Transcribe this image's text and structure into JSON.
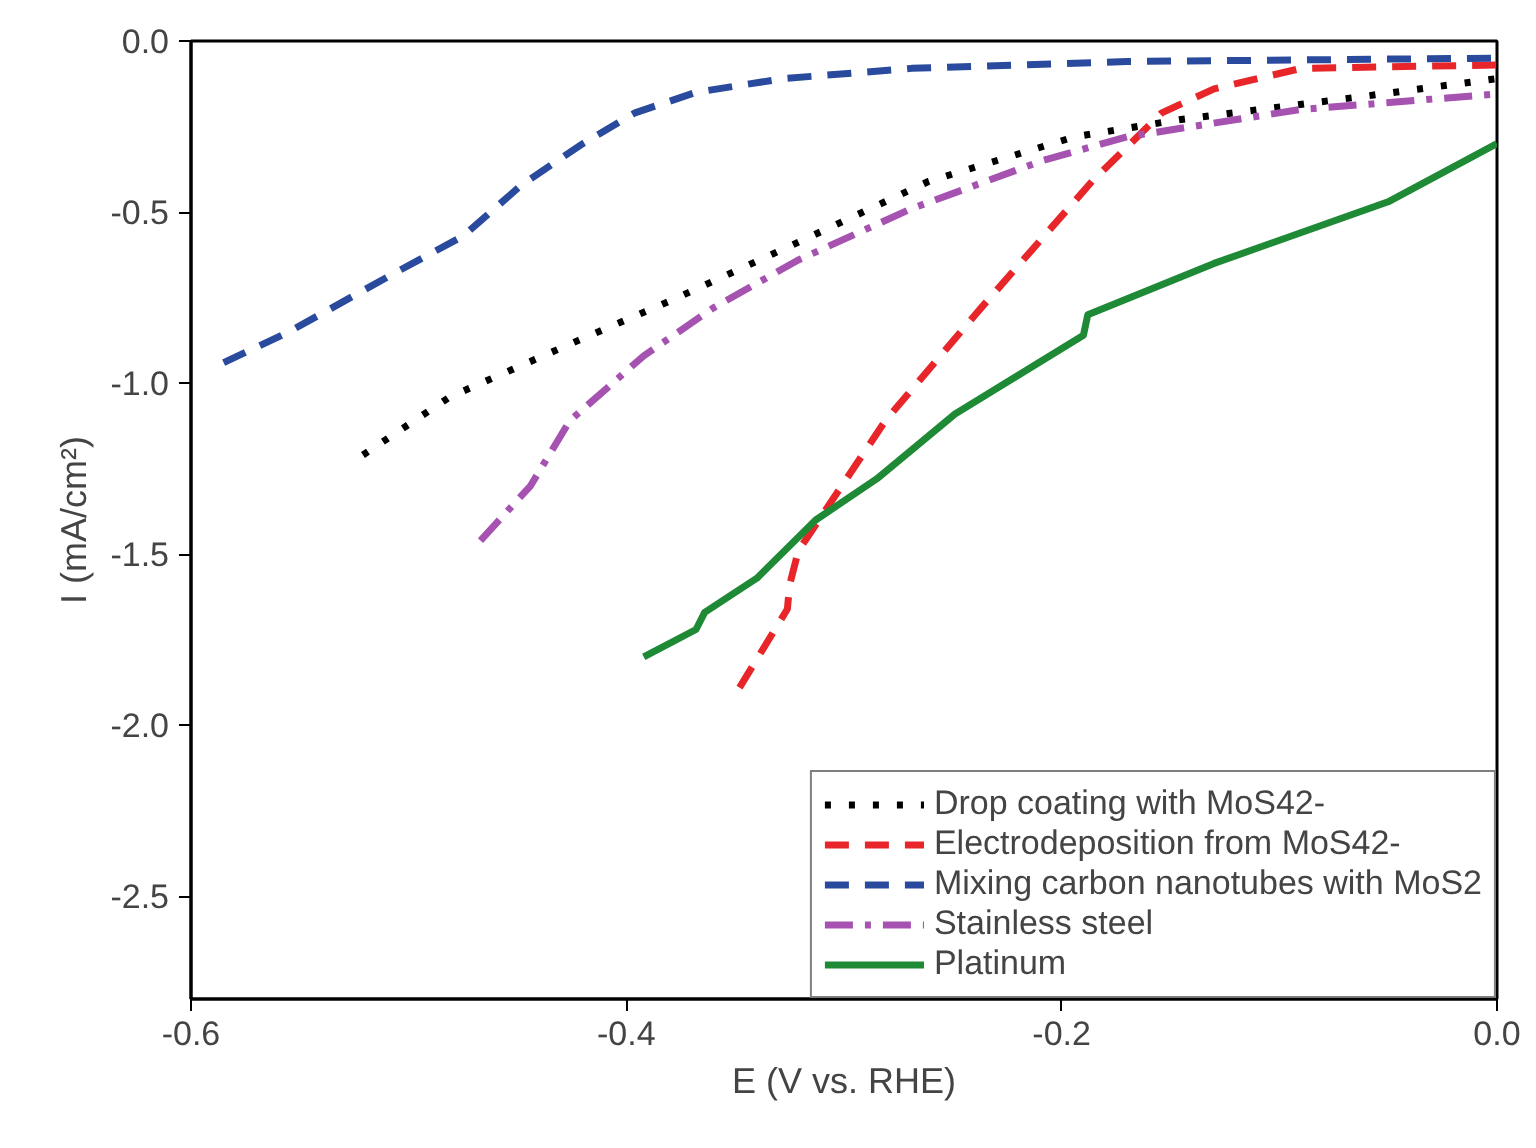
{
  "chart_data": {
    "type": "line",
    "xlabel": "E (V vs. RHE)",
    "ylabel": "I (mA/cm²)",
    "xlim": [
      -0.6,
      0.0
    ],
    "ylim": [
      -2.8,
      0.0
    ],
    "xticks": [
      -0.6,
      -0.4,
      -0.2,
      {
        "value": 0,
        "label": "0.0"
      }
    ],
    "yticks": [
      {
        "value": 0,
        "label": "0.0"
      },
      -0.5,
      {
        "value": -1,
        "label": "-1.0"
      },
      -1.5,
      {
        "value": -2,
        "label": "-2.0"
      },
      -2.5
    ],
    "grid": false,
    "legend": "bottom right",
    "series": [
      {
        "name": "Drop coating with MoS42-",
        "color": "#000000",
        "line_style": "dotted",
        "x": [
          -0.521,
          -0.481,
          -0.422,
          -0.38,
          -0.325,
          -0.261,
          -0.194,
          -0.146,
          -0.059,
          0.0
        ],
        "values": [
          -1.21,
          -1.04,
          -0.875,
          -0.76,
          -0.6,
          -0.41,
          -0.28,
          -0.23,
          -0.16,
          -0.11
        ]
      },
      {
        "name": "Electrodeposition from MoS42-",
        "color": "#e8262a",
        "line_style": "dashed",
        "x": [
          -0.348,
          -0.326,
          -0.325,
          -0.321,
          -0.281,
          -0.237,
          -0.186,
          -0.154,
          -0.13,
          -0.09,
          0.0
        ],
        "values": [
          -1.89,
          -1.66,
          -1.59,
          -1.49,
          -1.11,
          -0.78,
          -0.41,
          -0.21,
          -0.14,
          -0.08,
          -0.07
        ]
      },
      {
        "name": "Mixing carbon nanotubes with MoS2",
        "color": "#2a4a9e",
        "line_style": "dashed",
        "x": [
          -0.585,
          -0.555,
          -0.507,
          -0.475,
          -0.448,
          -0.42,
          -0.396,
          -0.368,
          -0.328,
          -0.269,
          -0.17,
          0.0
        ],
        "values": [
          -0.94,
          -0.85,
          -0.68,
          -0.57,
          -0.42,
          -0.3,
          -0.21,
          -0.15,
          -0.11,
          -0.08,
          -0.06,
          -0.05
        ]
      },
      {
        "name": "Stainless steel",
        "color": "#a552b0",
        "line_style": "dashdot",
        "x": [
          -0.467,
          -0.444,
          -0.426,
          -0.392,
          -0.36,
          -0.321,
          -0.269,
          -0.209,
          -0.17,
          -0.09,
          0.0
        ],
        "values": [
          -1.46,
          -1.3,
          -1.11,
          -0.92,
          -0.78,
          -0.64,
          -0.49,
          -0.35,
          -0.28,
          -0.2,
          -0.155
        ]
      },
      {
        "name": "Platinum",
        "color": "#1e8a35",
        "line_style": "solid",
        "x": [
          -0.392,
          -0.368,
          -0.364,
          -0.34,
          -0.313,
          -0.285,
          -0.249,
          -0.19,
          -0.188,
          -0.13,
          -0.05,
          0.0
        ],
        "values": [
          -1.8,
          -1.72,
          -1.67,
          -1.57,
          -1.4,
          -1.28,
          -1.09,
          -0.86,
          -0.8,
          -0.65,
          -0.47,
          -0.3
        ]
      }
    ]
  }
}
